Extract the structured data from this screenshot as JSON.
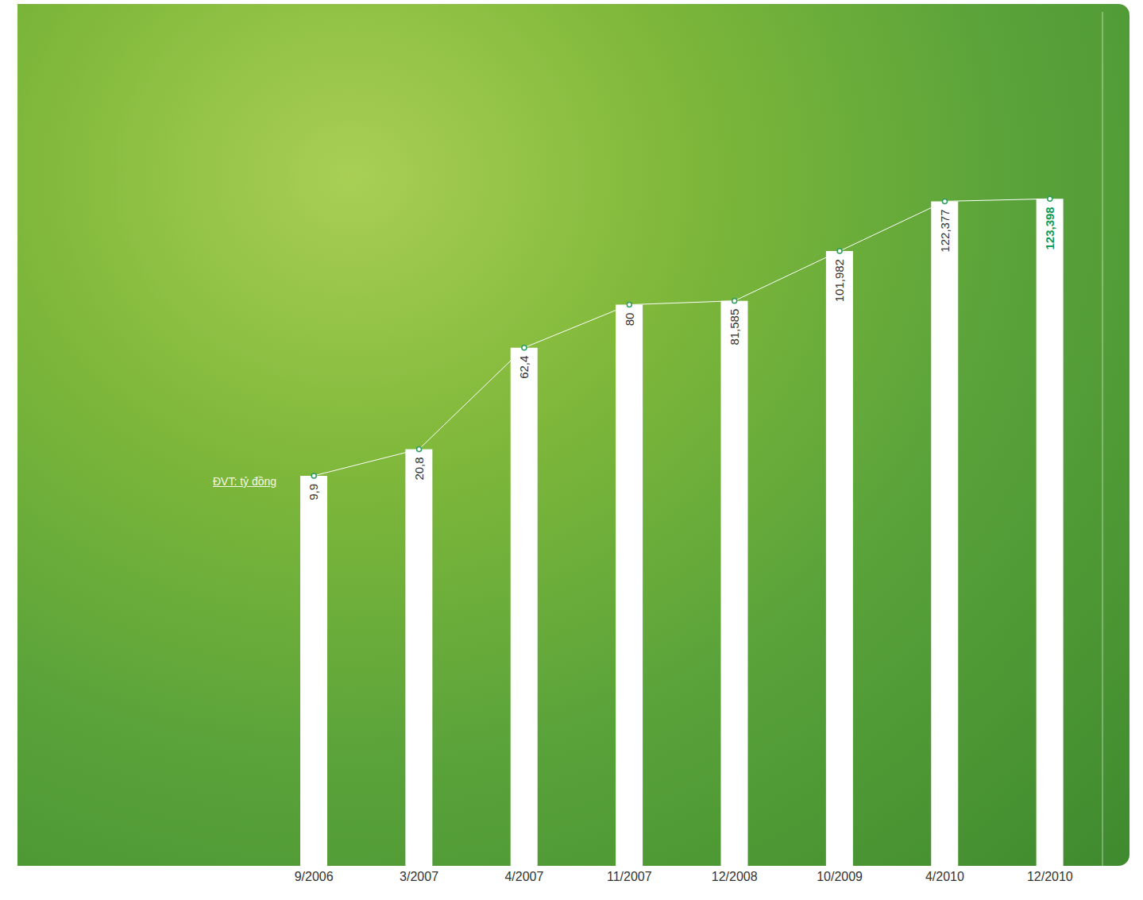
{
  "chart_data": {
    "type": "bar",
    "categories": [
      "9/2006",
      "3/2007",
      "4/2007",
      "11/2007",
      "12/2008",
      "10/2009",
      "4/2010",
      "12/2010"
    ],
    "values": [
      9.9,
      20.8,
      62.4,
      80,
      81.585,
      101.982,
      122.377,
      123.398
    ],
    "value_labels": [
      "9,9",
      "20,8",
      "62,4",
      "80",
      "81,585",
      "101,982",
      "122,377",
      "123,398"
    ],
    "y_label": "ĐVT: tỷ đồng",
    "color": "#ffffff",
    "ylim": [
      -150,
      200
    ],
    "data_labels": true,
    "tick_labels": "x",
    "marker": "circle",
    "line_style": "solid"
  }
}
